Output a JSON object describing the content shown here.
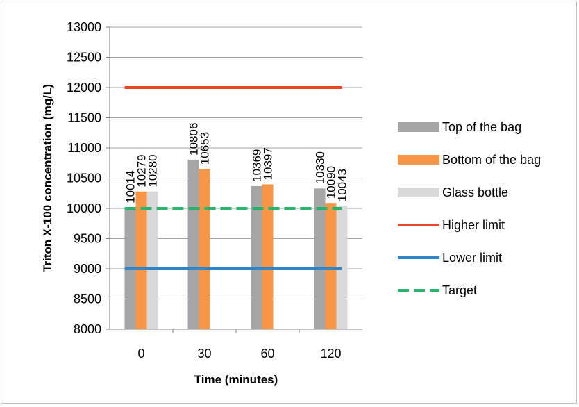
{
  "chart_data": {
    "type": "bar",
    "title": "",
    "xlabel": "Time (minutes)",
    "ylabel": "Triton X-100 concentration (mg/L)",
    "categories": [
      "0",
      "30",
      "60",
      "120"
    ],
    "ylim": [
      8000,
      13000
    ],
    "ytick_step": 500,
    "yticks": [
      "8000",
      "8500",
      "9000",
      "9500",
      "10000",
      "10500",
      "11000",
      "11500",
      "12000",
      "12500",
      "13000"
    ],
    "grid": true,
    "legend_position": "right",
    "series": [
      {
        "name": "Top of the bag",
        "values": [
          10014,
          10806,
          10369,
          10330
        ],
        "labels": [
          "10014",
          "10806",
          "10369",
          "10330"
        ],
        "color": "#a6a6a6"
      },
      {
        "name": "Bottom of the bag",
        "values": [
          10279,
          10653,
          10397,
          10090
        ],
        "labels": [
          "10279",
          "10653",
          "10397",
          "10090"
        ],
        "color": "#f79646"
      },
      {
        "name": "Glass bottle",
        "values": [
          10280,
          null,
          null,
          10043
        ],
        "labels": [
          "10280",
          "",
          "",
          "10043"
        ],
        "color": "#d9d9d9"
      }
    ],
    "reference_lines": [
      {
        "name": "Higher limit",
        "value": 12000,
        "color": "#e8472a",
        "style": "solid"
      },
      {
        "name": "Lower limit",
        "value": 9000,
        "color": "#2e86c9",
        "style": "solid"
      },
      {
        "name": "Target",
        "value": 10000,
        "color": "#2ab36a",
        "style": "dashed"
      }
    ]
  }
}
